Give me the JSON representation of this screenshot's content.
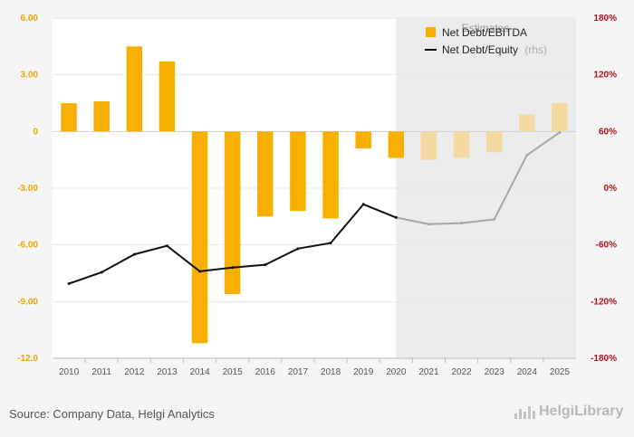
{
  "chart_data": {
    "type": "bar+line",
    "title": "",
    "xlabel": "",
    "ylabel": "",
    "categories": [
      "2010",
      "2011",
      "2012",
      "2013",
      "2014",
      "2015",
      "2016",
      "2017",
      "2018",
      "2019",
      "2020",
      "2021",
      "2022",
      "2023",
      "2024",
      "2025"
    ],
    "series": [
      {
        "name": "Net Debt/EBITDA",
        "type": "bar",
        "axis": "left",
        "color": "#f7b000",
        "estimate_color": "#f4d9a0",
        "values": [
          1.5,
          1.6,
          4.5,
          3.7,
          -11.2,
          -8.6,
          -4.5,
          -4.2,
          -4.6,
          -0.9,
          -1.4,
          -1.5,
          -1.4,
          -1.1,
          0.9,
          1.5
        ]
      },
      {
        "name": "Net Debt/Equity",
        "name_suffix": "(rhs)",
        "type": "line",
        "axis": "right",
        "color": "#111111",
        "estimate_color": "#a6a6a6",
        "values": [
          -101,
          -89,
          -70,
          -61,
          -88,
          -84,
          -81,
          -64,
          -58,
          -17,
          -31,
          -38,
          -37,
          -33,
          35,
          59
        ]
      }
    ],
    "estimate_start_index": 11,
    "estimate_label": "Estimates",
    "y_left": {
      "min": -12,
      "max": 6,
      "ticks": [
        6,
        3,
        0,
        -3,
        -6,
        -9,
        -12
      ],
      "tick_labels": [
        "6.00",
        "3.00",
        "0",
        "-3.00",
        "-6.00",
        "-9.00",
        "-12.0"
      ],
      "tick_color": "#f0a800"
    },
    "y_right": {
      "min": -180,
      "max": 180,
      "ticks": [
        180,
        120,
        60,
        0,
        -60,
        -120,
        -180
      ],
      "tick_labels": [
        "180%",
        "120%",
        "60%",
        "0%",
        "-60%",
        "-120%",
        "-180%"
      ],
      "tick_color": "#b01020"
    },
    "grid": true,
    "legend_position": "top-right"
  },
  "footer": {
    "source": "Source: Company Data, Helgi Analytics",
    "logo_text": "HelgiLibrary"
  }
}
